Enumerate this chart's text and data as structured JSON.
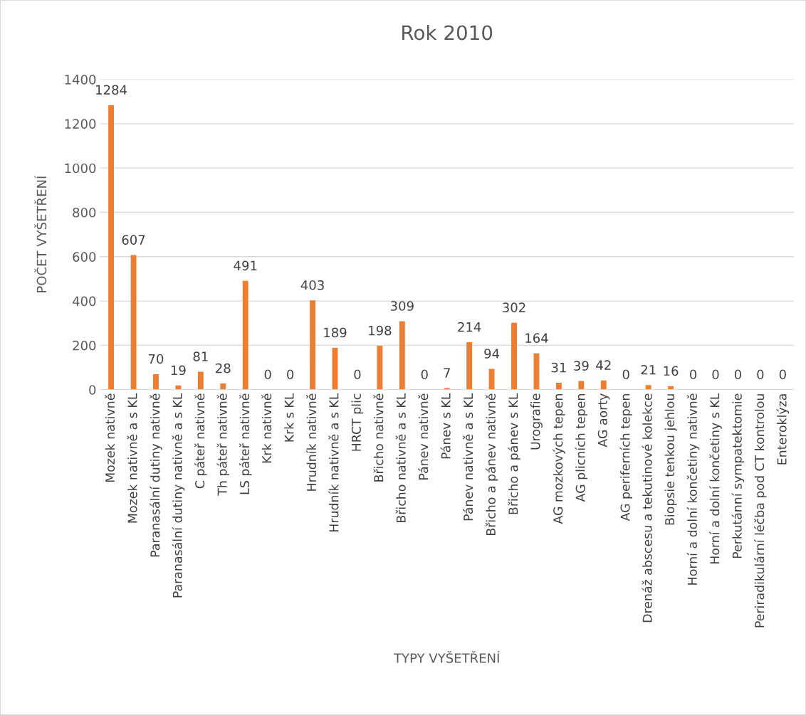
{
  "chart_data": {
    "type": "bar",
    "title": "Rok 2010",
    "xlabel": "TYPY VYŠETŘENÍ",
    "ylabel": "POČET VYŠETŘENÍ",
    "categories": [
      "Mozek nativně",
      "Mozek nativně a s KL",
      "Paranasální dutiny nativně",
      "Paranasální dutiny nativně a s KL",
      "C páteř nativně",
      "Th páteř nativně",
      "LS páteř nativně",
      "Krk nativně",
      "Krk s KL",
      "Hrudník nativně",
      "Hrudník nativně a s KL",
      "HRCT plic",
      "Břicho nativně",
      "Břicho nativně a s KL",
      "Pánev nativně",
      "Pánev s KL",
      "Pánev nativně a s KL",
      "Břicho a pánev nativně",
      "Břicho a pánev s KL",
      "Urografie",
      "AG mozkových tepen",
      "AG plicních tepen",
      "AG aorty",
      "AG periferních tepen",
      "Drenáž abscesu a tekutinové kolekce",
      "Biopsie tenkou jehlou",
      "Horní a dolní končetiny nativně",
      "Horní a dolní končetiny s KL",
      "Perkutánní sympatektomie",
      "Periradikulární léčba pod CT kontrolou",
      "Enteroklýza"
    ],
    "values": [
      1284,
      607,
      70,
      19,
      81,
      28,
      491,
      0,
      0,
      403,
      189,
      0,
      198,
      309,
      0,
      7,
      214,
      94,
      302,
      164,
      31,
      39,
      42,
      0,
      21,
      16,
      0,
      0,
      0,
      0,
      0
    ],
    "color": "#ed7d31",
    "ylim": [
      0,
      1400
    ],
    "yticks": [
      0,
      200,
      400,
      600,
      800,
      1000,
      1200,
      1400
    ],
    "grid": "y",
    "data_labels": true
  }
}
